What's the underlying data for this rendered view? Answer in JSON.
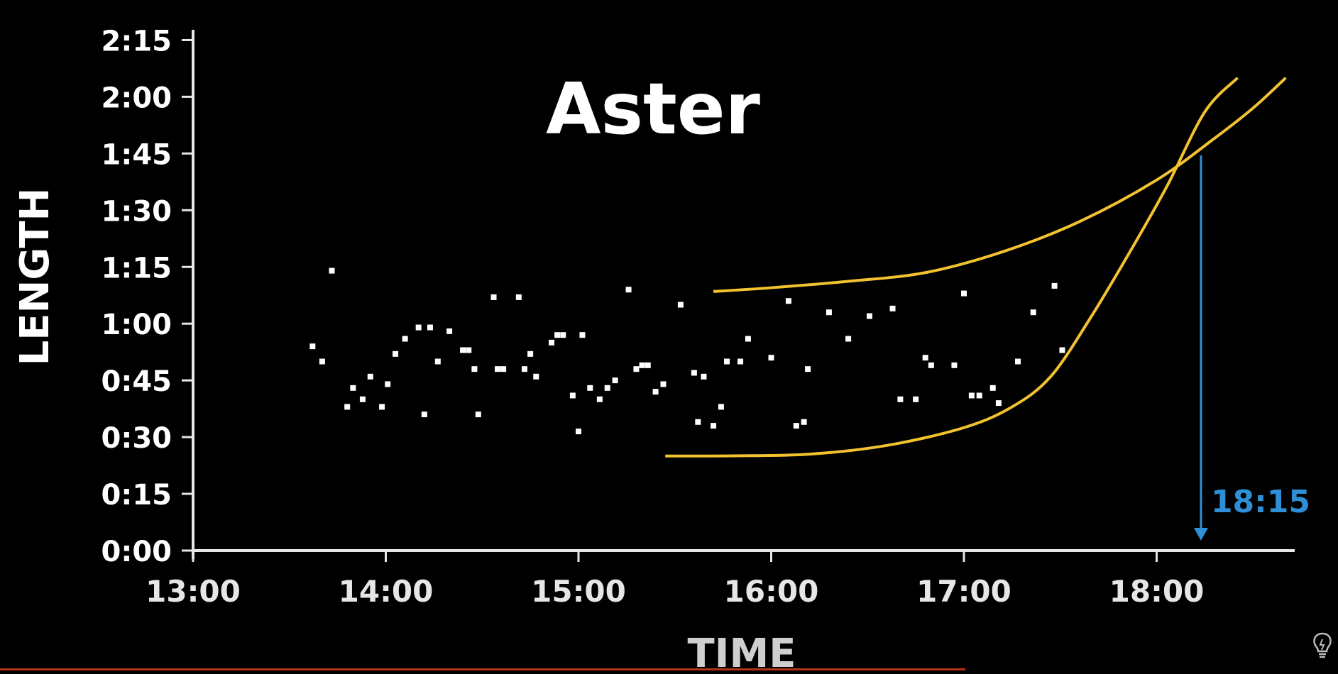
{
  "chart_data": {
    "type": "scatter",
    "title": "Aster",
    "xlabel": "TIME",
    "ylabel": "LENGTH",
    "x_unit": "hours",
    "y_unit": "minutes",
    "xlim": [
      13.0,
      18.75
    ],
    "ylim": [
      0,
      137
    ],
    "x_ticks": [
      {
        "value": 13,
        "label": "13:00"
      },
      {
        "value": 14,
        "label": "14:00"
      },
      {
        "value": 15,
        "label": "15:00"
      },
      {
        "value": 16,
        "label": "16:00"
      },
      {
        "value": 17,
        "label": "17:00"
      },
      {
        "value": 18,
        "label": "18:00"
      }
    ],
    "y_ticks": [
      {
        "value": 0,
        "label": "0:00"
      },
      {
        "value": 15,
        "label": "0:15"
      },
      {
        "value": 30,
        "label": "0:30"
      },
      {
        "value": 45,
        "label": "0:45"
      },
      {
        "value": 60,
        "label": "1:00"
      },
      {
        "value": 75,
        "label": "1:15"
      },
      {
        "value": 90,
        "label": "1:30"
      },
      {
        "value": 105,
        "label": "1:45"
      },
      {
        "value": 120,
        "label": "2:00"
      },
      {
        "value": 135,
        "label": "2:15"
      }
    ],
    "points": [
      [
        13.62,
        54
      ],
      [
        13.67,
        50
      ],
      [
        13.72,
        74
      ],
      [
        13.8,
        38
      ],
      [
        13.83,
        43
      ],
      [
        13.88,
        40
      ],
      [
        13.92,
        46
      ],
      [
        13.98,
        38
      ],
      [
        14.01,
        44
      ],
      [
        14.05,
        52
      ],
      [
        14.1,
        56
      ],
      [
        14.17,
        59
      ],
      [
        14.2,
        36
      ],
      [
        14.23,
        59
      ],
      [
        14.27,
        50
      ],
      [
        14.33,
        58
      ],
      [
        14.4,
        53
      ],
      [
        14.43,
        53
      ],
      [
        14.46,
        48
      ],
      [
        14.48,
        36
      ],
      [
        14.56,
        67
      ],
      [
        14.58,
        48
      ],
      [
        14.61,
        48
      ],
      [
        14.69,
        67
      ],
      [
        14.72,
        48
      ],
      [
        14.75,
        52
      ],
      [
        14.78,
        46
      ],
      [
        14.86,
        55
      ],
      [
        14.89,
        57
      ],
      [
        14.92,
        57
      ],
      [
        14.97,
        41
      ],
      [
        15.0,
        31.5
      ],
      [
        15.02,
        57
      ],
      [
        15.06,
        43
      ],
      [
        15.11,
        40
      ],
      [
        15.15,
        43
      ],
      [
        15.19,
        45
      ],
      [
        15.26,
        69
      ],
      [
        15.3,
        48
      ],
      [
        15.33,
        49
      ],
      [
        15.36,
        49
      ],
      [
        15.4,
        42
      ],
      [
        15.44,
        44
      ],
      [
        15.53,
        65
      ],
      [
        15.6,
        47
      ],
      [
        15.62,
        34
      ],
      [
        15.65,
        46
      ],
      [
        15.7,
        33
      ],
      [
        15.74,
        38
      ],
      [
        15.77,
        50
      ],
      [
        15.84,
        50
      ],
      [
        15.88,
        56
      ],
      [
        16.0,
        51
      ],
      [
        16.09,
        66
      ],
      [
        16.13,
        33
      ],
      [
        16.17,
        34
      ],
      [
        16.19,
        48
      ],
      [
        16.3,
        63
      ],
      [
        16.4,
        56
      ],
      [
        16.51,
        62
      ],
      [
        16.63,
        64
      ],
      [
        16.67,
        40
      ],
      [
        16.75,
        40
      ],
      [
        16.8,
        51
      ],
      [
        16.83,
        49
      ],
      [
        16.95,
        49
      ],
      [
        17.0,
        68
      ],
      [
        17.04,
        41
      ],
      [
        17.08,
        41
      ],
      [
        17.15,
        43
      ],
      [
        17.18,
        39
      ],
      [
        17.28,
        50
      ],
      [
        17.36,
        63
      ],
      [
        17.47,
        70
      ],
      [
        17.51,
        53
      ]
    ],
    "fit_curves": [
      {
        "points": [
          [
            15.45,
            25
          ],
          [
            15.8,
            25.05
          ],
          [
            16.2,
            25.5
          ],
          [
            16.6,
            27.8
          ],
          [
            17.0,
            32.5
          ],
          [
            17.25,
            38
          ],
          [
            17.45,
            46
          ],
          [
            17.65,
            61
          ],
          [
            17.85,
            78
          ],
          [
            18.05,
            96
          ],
          [
            18.25,
            116
          ],
          [
            18.42,
            125
          ]
        ]
      },
      {
        "points": [
          [
            15.7,
            68.5
          ],
          [
            16.0,
            69.5
          ],
          [
            16.4,
            71.2
          ],
          [
            16.8,
            73.5
          ],
          [
            17.2,
            79
          ],
          [
            17.6,
            87
          ],
          [
            18.0,
            98
          ],
          [
            18.3,
            109
          ],
          [
            18.5,
            117
          ],
          [
            18.67,
            125
          ]
        ]
      }
    ],
    "curve_color": "#f2c230",
    "point_color": "#ffffff",
    "annotation": {
      "label": "18:15",
      "x": 18.23,
      "y_from": 104.5,
      "y_to": 3,
      "color": "#2f8fd6"
    }
  }
}
